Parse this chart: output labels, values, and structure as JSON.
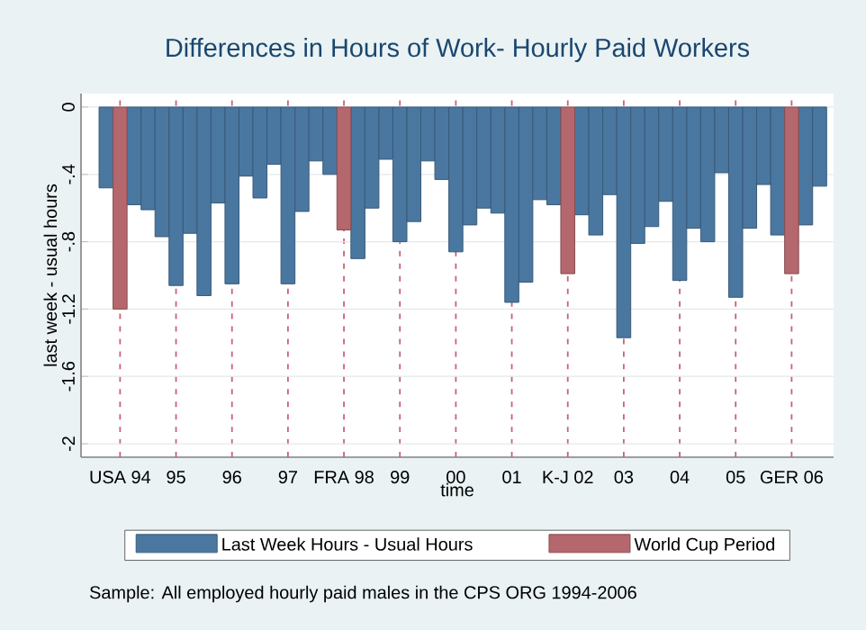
{
  "chart_data": {
    "type": "bar",
    "title": "Differences in Hours of Work- Hourly Paid Workers",
    "xlabel": "time",
    "ylabel": "last week - usual hours",
    "categories": [
      null,
      "USA 94",
      null,
      null,
      null,
      "95",
      null,
      null,
      null,
      "96",
      null,
      null,
      null,
      "97",
      null,
      null,
      null,
      "FRA 98",
      null,
      null,
      null,
      "99",
      null,
      null,
      null,
      "00",
      null,
      null,
      null,
      "01",
      null,
      null,
      null,
      "K-J 02",
      null,
      null,
      null,
      "03",
      null,
      null,
      null,
      "04",
      null,
      null,
      null,
      "05",
      null,
      null,
      null,
      "GER 06",
      null,
      null
    ],
    "series": [
      {
        "name": "Last Week Hours - Usual Hours",
        "color": "#4a77a0",
        "values": [
          -0.48,
          null,
          -0.58,
          -0.61,
          -0.77,
          -1.06,
          -0.75,
          -1.12,
          -0.57,
          -1.05,
          -0.41,
          -0.54,
          -0.34,
          -1.05,
          -0.62,
          -0.32,
          -0.4,
          null,
          -0.9,
          -0.6,
          -0.31,
          -0.8,
          -0.68,
          -0.32,
          -0.43,
          -0.86,
          -0.7,
          -0.6,
          -0.63,
          -1.16,
          -1.04,
          -0.55,
          -0.58,
          null,
          -0.64,
          -0.76,
          -0.52,
          -1.37,
          -0.81,
          -0.71,
          -0.56,
          -1.03,
          -0.72,
          -0.8,
          -0.39,
          -1.13,
          -0.72,
          -0.46,
          -0.76,
          null,
          -0.7,
          -0.47
        ]
      },
      {
        "name": "World Cup Period",
        "color": "#b4676c",
        "values": [
          null,
          -1.2,
          null,
          null,
          null,
          null,
          null,
          null,
          null,
          null,
          null,
          null,
          null,
          null,
          null,
          null,
          null,
          -0.73,
          null,
          null,
          null,
          null,
          null,
          null,
          null,
          null,
          null,
          null,
          null,
          null,
          null,
          null,
          null,
          -0.99,
          null,
          null,
          null,
          null,
          null,
          null,
          null,
          null,
          null,
          null,
          null,
          null,
          null,
          null,
          null,
          -0.99,
          null,
          null
        ]
      }
    ],
    "ylim": [
      -2.08,
      0.08
    ],
    "yticks": [
      0,
      {
        "value": -0.4,
        "label": "-.4"
      },
      {
        "value": -0.8,
        "label": "-.8"
      },
      {
        "value": -1.2,
        "label": "-1.2"
      },
      {
        "value": -1.6,
        "label": "-1.6"
      },
      -2
    ],
    "grid": true,
    "legend": "bottom",
    "annotations": [
      "Sample: All employed hourly paid males in the CPS ORG 1994-2006"
    ]
  }
}
